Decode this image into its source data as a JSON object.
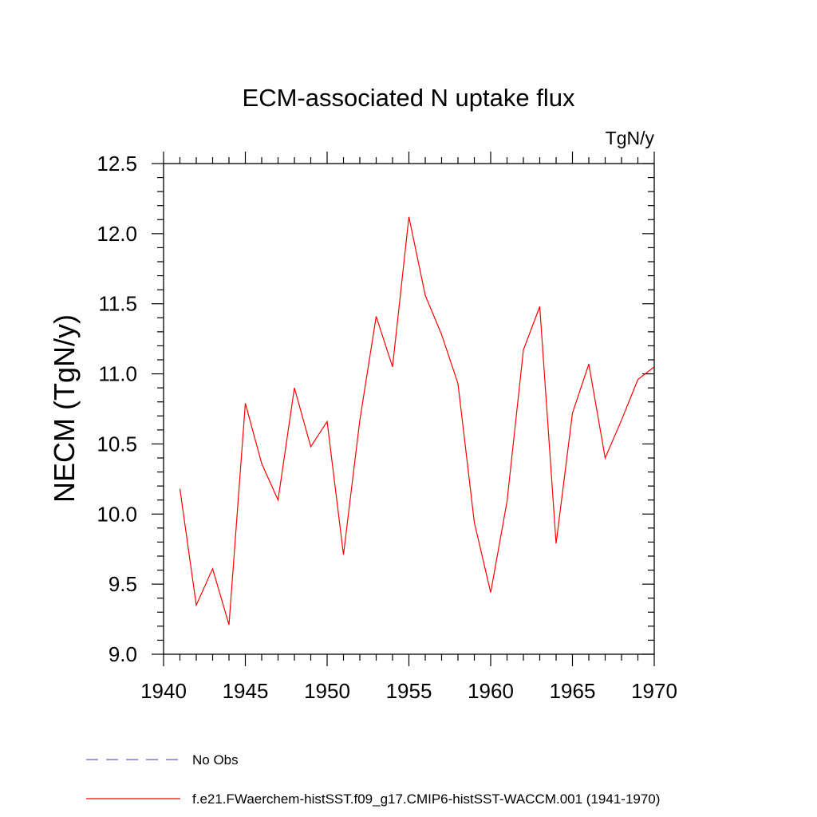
{
  "chart_data": {
    "type": "line",
    "title": "ECM-associated N uptake flux",
    "units_label": "TgN/y",
    "ylabel": "NECM  (TgN/y)",
    "xlabel": "",
    "xlim": [
      1940,
      1970
    ],
    "ylim": [
      9.0,
      12.5
    ],
    "x_ticks": [
      "1940",
      "1945",
      "1950",
      "1955",
      "1960",
      "1965",
      "1970"
    ],
    "y_ticks": [
      "9.0",
      "9.5",
      "10.0",
      "10.5",
      "11.0",
      "11.5",
      "12.0",
      "12.5"
    ],
    "grid": false,
    "legend_position": "bottom",
    "series": [
      {
        "name": "f.e21.FWaerchem-histSST.f09_g17.CMIP6-histSST-WACCM.001 (1941-1970)",
        "color": "#ff0000",
        "dash": "solid",
        "x": [
          1941,
          1942,
          1943,
          1944,
          1945,
          1946,
          1947,
          1948,
          1949,
          1950,
          1951,
          1952,
          1953,
          1954,
          1955,
          1956,
          1957,
          1958,
          1959,
          1960,
          1961,
          1962,
          1963,
          1964,
          1965,
          1966,
          1967,
          1968,
          1969,
          1970
        ],
        "values": [
          10.18,
          9.35,
          9.61,
          9.21,
          10.79,
          10.36,
          10.1,
          10.9,
          10.48,
          10.66,
          9.71,
          10.67,
          11.41,
          11.05,
          12.12,
          11.56,
          11.28,
          10.93,
          9.94,
          9.44,
          10.09,
          11.17,
          11.48,
          9.79,
          10.72,
          11.07,
          10.4,
          10.67,
          10.96,
          11.05
        ]
      }
    ],
    "legend": [
      {
        "label": "No Obs",
        "color": "#6a5acd",
        "dash": "dashed"
      },
      {
        "label": "f.e21.FWaerchem-histSST.f09_g17.CMIP6-histSST-WACCM.001 (1941-1970)",
        "color": "#ff0000",
        "dash": "solid"
      }
    ]
  }
}
